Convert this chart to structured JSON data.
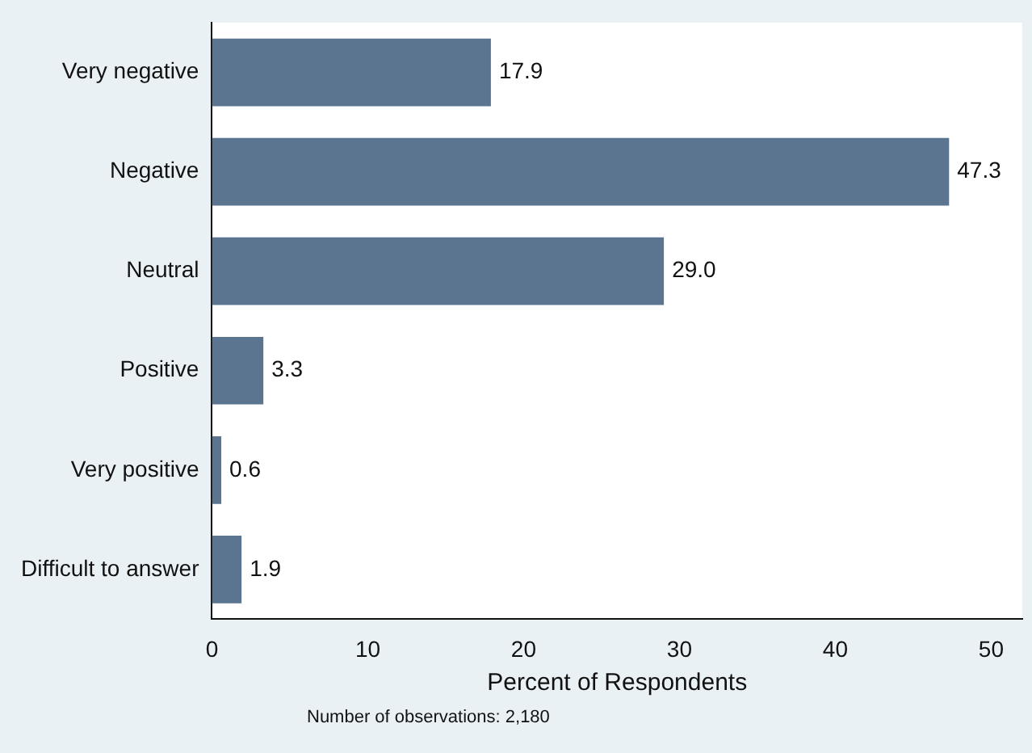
{
  "chart_data": {
    "type": "bar",
    "orientation": "horizontal",
    "xlabel": "Percent of Respondents",
    "categories": [
      "Very negative",
      "Negative",
      "Neutral",
      "Positive",
      "Very positive",
      "Difficult to answer"
    ],
    "values": [
      17.9,
      47.3,
      29.0,
      3.3,
      0.6,
      1.9
    ],
    "value_labels": [
      "17.9",
      "47.3",
      "29.0",
      "3.3",
      "0.6",
      "1.9"
    ],
    "color": "#5b7591",
    "xlim": [
      0,
      52
    ],
    "xticks": [
      0,
      10,
      20,
      30,
      40,
      50
    ],
    "grid": false,
    "legend": false,
    "annotations": [
      "Number of observations: 2,180"
    ]
  }
}
